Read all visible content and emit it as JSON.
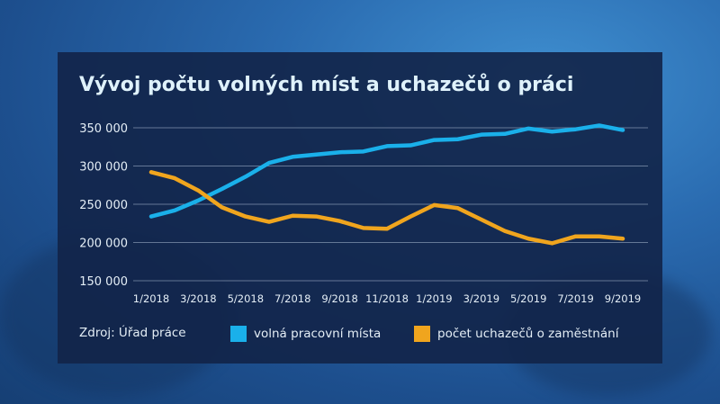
{
  "title": "Vývoj počtu volných míst a uchazečů o práci",
  "source": "Zdroj: Úřad práce",
  "chart_data": {
    "type": "line",
    "title": "Vývoj počtu volných míst a uchazečů o práci",
    "x": [
      "1/2018",
      "2/2018",
      "3/2018",
      "4/2018",
      "5/2018",
      "6/2018",
      "7/2018",
      "8/2018",
      "9/2018",
      "10/2018",
      "11/2018",
      "12/2018",
      "1/2019",
      "2/2019",
      "3/2019",
      "4/2019",
      "5/2019",
      "6/2019",
      "7/2019",
      "8/2019",
      "9/2019"
    ],
    "x_tick_labels": [
      "1/2018",
      "3/2018",
      "5/2018",
      "7/2018",
      "9/2018",
      "11/2018",
      "1/2019",
      "3/2019",
      "5/2019",
      "7/2019",
      "9/2019"
    ],
    "y_tick_labels": [
      "350 000",
      "300 000",
      "250 000",
      "200 000",
      "150 000"
    ],
    "y_ticks": [
      350000,
      300000,
      250000,
      200000,
      150000
    ],
    "ylim": [
      150000,
      350000
    ],
    "grid": true,
    "legend_position": "bottom",
    "series": [
      {
        "name": "volná pracovní místa",
        "color": "#1ab0ea",
        "values": [
          234000,
          242000,
          255000,
          270000,
          286000,
          304000,
          312000,
          315000,
          318000,
          319000,
          326000,
          327000,
          334000,
          335000,
          341000,
          342000,
          349000,
          345000,
          348000,
          353000,
          347000
        ]
      },
      {
        "name": "počet uchazečů o zaměstnání",
        "color": "#f0a51e",
        "values": [
          292000,
          284000,
          268000,
          246000,
          234000,
          227000,
          235000,
          234000,
          228000,
          219000,
          218000,
          234000,
          249000,
          245000,
          230000,
          215000,
          205000,
          199000,
          208000,
          208000,
          205000
        ]
      }
    ]
  }
}
